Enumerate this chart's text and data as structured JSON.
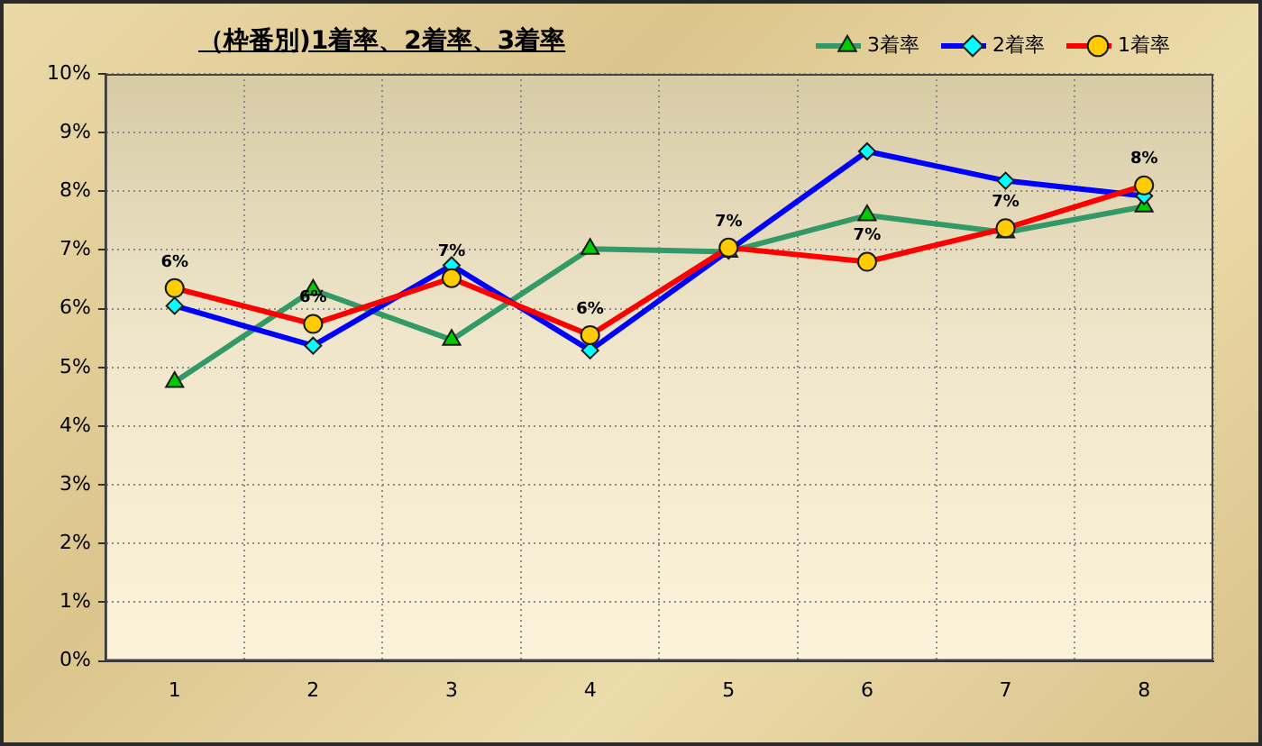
{
  "chart_data": {
    "type": "line",
    "title": "（枠番別)1着率、2着率、3着率",
    "categories": [
      "1",
      "2",
      "3",
      "4",
      "5",
      "6",
      "7",
      "8"
    ],
    "series": [
      {
        "name": "3着率",
        "color": "#339966",
        "colors": [
          "#00cc00",
          "#00cc00",
          "#00cc00",
          "#00cc00",
          "#00cc00",
          "#00cc00",
          "#00cc00",
          "#00cc00"
        ],
        "marker": "triangle",
        "values": [
          4.75,
          6.32,
          5.47,
          7.02,
          6.97,
          7.59,
          7.3,
          7.74
        ]
      },
      {
        "name": "2着率",
        "color": "#0000ff",
        "colors": [
          "#00ffff",
          "#00ffff",
          "#00ffff",
          "#00ffff",
          "#00ffff",
          "#00ffff",
          "#00ffff",
          "#00ffff"
        ],
        "marker": "diamond",
        "values": [
          6.05,
          5.37,
          6.74,
          5.29,
          6.99,
          8.68,
          8.18,
          7.92
        ]
      },
      {
        "name": "1着率",
        "color": "#ff0000",
        "colors": [
          "#ffcc00",
          "#ffcc00",
          "#ffcc00",
          "#ffcc00",
          "#ffcc00",
          "#ffcc00",
          "#ffcc00",
          "#ffcc00"
        ],
        "marker": "circle",
        "values": [
          6.35,
          5.74,
          6.52,
          5.55,
          7.04,
          6.8,
          7.37,
          8.1
        ],
        "value_labels": [
          "6%",
          "6%",
          "7%",
          "6%",
          "7%",
          "7%",
          "7%",
          "8%"
        ]
      }
    ],
    "ylim": [
      0,
      10
    ],
    "yticks": [
      {
        "value": 0,
        "label": "0%"
      },
      {
        "value": 1,
        "label": "1%"
      },
      {
        "value": 2,
        "label": "2%"
      },
      {
        "value": 3,
        "label": "3%"
      },
      {
        "value": 4,
        "label": "4%"
      },
      {
        "value": 5,
        "label": "5%"
      },
      {
        "value": 6,
        "label": "6%"
      },
      {
        "value": 7,
        "label": "7%"
      },
      {
        "value": 8,
        "label": "8%"
      },
      {
        "value": 9,
        "label": "9%"
      },
      {
        "value": 10,
        "label": "10%"
      }
    ],
    "grid": true,
    "legend": "top right",
    "line_style": "solid"
  }
}
